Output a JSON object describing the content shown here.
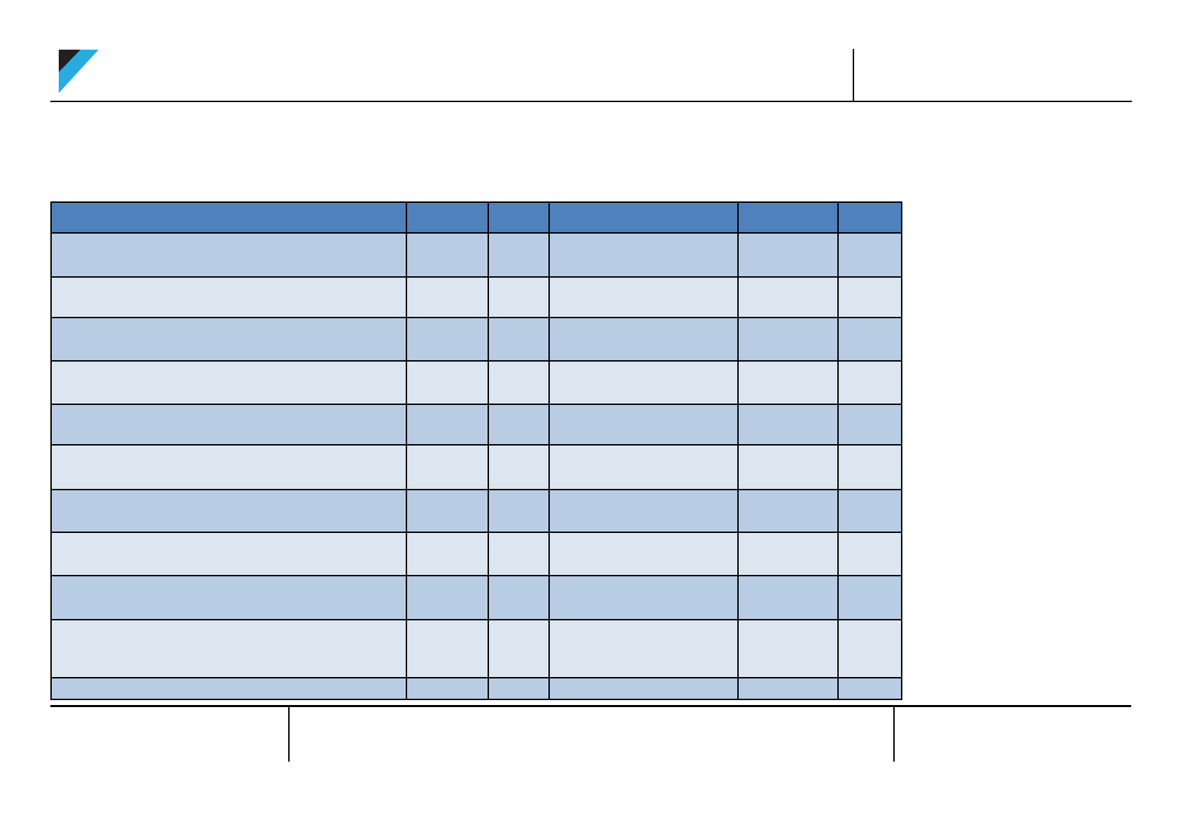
{
  "page": {
    "background": "#FFFFFF",
    "header": {
      "logo": {
        "name": "corner-wedge-logo",
        "blue": "#29ABE2",
        "black": "#231F20"
      },
      "rule_color": "#000000",
      "divider_color": "#000000",
      "text": ""
    },
    "footer": {
      "rule_color": "#000000",
      "divider_color": "#000000",
      "left_cell_text": "",
      "middle_cell_text": "",
      "right_cell_text": ""
    }
  },
  "table": {
    "style": {
      "header_fill": "#4F81BD",
      "row_fill_odd": "#B8CCE4",
      "row_fill_even": "#DCE6F1",
      "border_color": "#000000"
    },
    "columns": [
      "",
      "",
      "",
      "",
      "",
      ""
    ],
    "rows": [
      [
        "",
        "",
        "",
        "",
        "",
        ""
      ],
      [
        "",
        "",
        "",
        "",
        "",
        ""
      ],
      [
        "",
        "",
        "",
        "",
        "",
        ""
      ],
      [
        "",
        "",
        "",
        "",
        "",
        ""
      ],
      [
        "",
        "",
        "",
        "",
        "",
        ""
      ],
      [
        "",
        "",
        "",
        "",
        "",
        ""
      ],
      [
        "",
        "",
        "",
        "",
        "",
        ""
      ],
      [
        "",
        "",
        "",
        "",
        "",
        ""
      ],
      [
        "",
        "",
        "",
        "",
        "",
        ""
      ],
      [
        "",
        "",
        "",
        "",
        "",
        ""
      ],
      [
        "",
        "",
        "",
        "",
        "",
        ""
      ]
    ]
  }
}
